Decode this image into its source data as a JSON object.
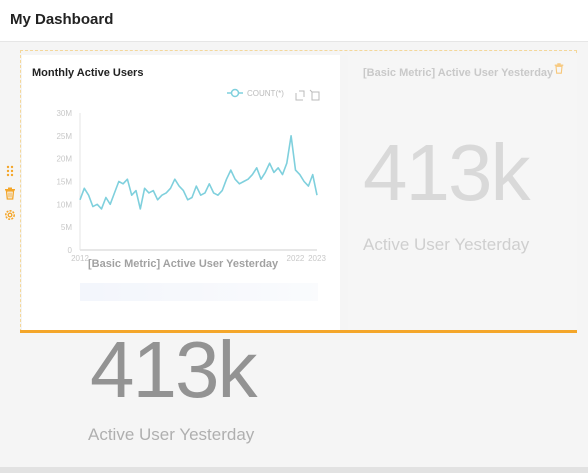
{
  "header": {
    "title": "My Dashboard"
  },
  "chart_card": {
    "title": "Monthly Active Users",
    "legend_label": "COUNT(*)",
    "colors": {
      "line": "#7fd0dd",
      "axis": "#999999"
    },
    "chart_data": {
      "type": "line",
      "title": "Monthly Active Users",
      "xlabel": "",
      "ylabel": "",
      "series": [
        {
          "name": "COUNT(*)"
        }
      ],
      "xlim": [
        2012,
        2023
      ],
      "ylim": [
        0,
        30000000
      ],
      "y_ticks": [
        "30M",
        "25M",
        "20M",
        "15M",
        "10M",
        "5M",
        "0"
      ],
      "y_tick_values": [
        30000000,
        25000000,
        20000000,
        15000000,
        10000000,
        5000000,
        0
      ],
      "x_ticks": [
        "2012",
        "2022",
        "2023"
      ],
      "x_tick_values": [
        2012,
        2022,
        2023
      ],
      "points": [
        [
          2012.0,
          11000000
        ],
        [
          2012.2,
          13500000
        ],
        [
          2012.4,
          12000000
        ],
        [
          2012.6,
          9500000
        ],
        [
          2012.8,
          10000000
        ],
        [
          2013.0,
          9000000
        ],
        [
          2013.2,
          11500000
        ],
        [
          2013.4,
          10000000
        ],
        [
          2013.6,
          12500000
        ],
        [
          2013.8,
          15000000
        ],
        [
          2014.0,
          14500000
        ],
        [
          2014.2,
          15500000
        ],
        [
          2014.4,
          12000000
        ],
        [
          2014.6,
          13000000
        ],
        [
          2014.8,
          9000000
        ],
        [
          2015.0,
          13500000
        ],
        [
          2015.2,
          12500000
        ],
        [
          2015.4,
          13000000
        ],
        [
          2015.6,
          11000000
        ],
        [
          2015.8,
          12000000
        ],
        [
          2016.0,
          12500000
        ],
        [
          2016.2,
          13500000
        ],
        [
          2016.4,
          15500000
        ],
        [
          2016.6,
          14000000
        ],
        [
          2016.8,
          13000000
        ],
        [
          2017.0,
          11000000
        ],
        [
          2017.2,
          11500000
        ],
        [
          2017.4,
          14000000
        ],
        [
          2017.6,
          12000000
        ],
        [
          2017.8,
          12500000
        ],
        [
          2018.0,
          14500000
        ],
        [
          2018.2,
          12500000
        ],
        [
          2018.4,
          12000000
        ],
        [
          2018.6,
          13000000
        ],
        [
          2018.8,
          15500000
        ],
        [
          2019.0,
          17500000
        ],
        [
          2019.2,
          15500000
        ],
        [
          2019.4,
          14500000
        ],
        [
          2019.6,
          15000000
        ],
        [
          2019.8,
          15500000
        ],
        [
          2020.0,
          16500000
        ],
        [
          2020.2,
          18000000
        ],
        [
          2020.4,
          15500000
        ],
        [
          2020.6,
          17000000
        ],
        [
          2020.8,
          19000000
        ],
        [
          2021.0,
          17000000
        ],
        [
          2021.2,
          18000000
        ],
        [
          2021.4,
          16500000
        ],
        [
          2021.6,
          19000000
        ],
        [
          2021.8,
          25000000
        ],
        [
          2022.0,
          17500000
        ],
        [
          2022.2,
          16500000
        ],
        [
          2022.4,
          15000000
        ],
        [
          2022.6,
          14000000
        ],
        [
          2022.8,
          16500000
        ],
        [
          2023.0,
          12000000
        ]
      ]
    }
  },
  "metric_card": {
    "title": "[Basic Metric] Active User Yesterday",
    "value": "413k",
    "subheader": "Active User Yesterday"
  },
  "drag_preview": {
    "title": "[Basic Metric] Active User Yesterday",
    "value": "413k",
    "subheader": "Active User Yesterday"
  }
}
